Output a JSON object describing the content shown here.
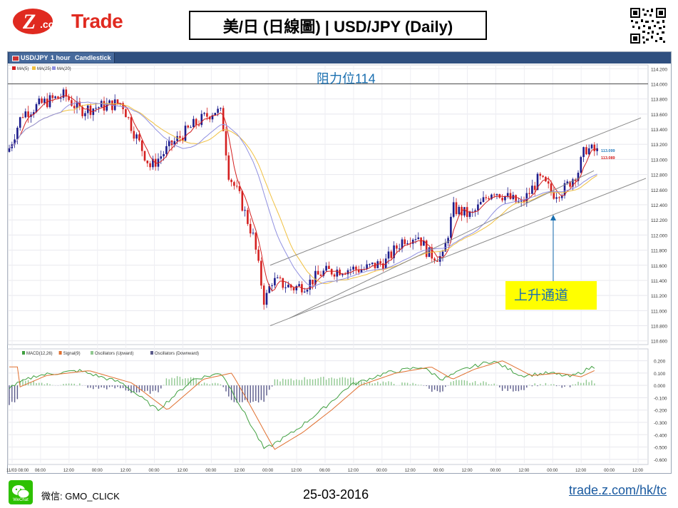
{
  "brand": {
    "logo_text": "Trade",
    "logo_z": "Z",
    "logo_com": ".com"
  },
  "title": "美/日 (日線圖) | USD/JPY  (Daily)",
  "chart_window": {
    "tabs": [
      "USD/JPY",
      "1 hour",
      "Candlestick"
    ],
    "legend_price": [
      "MA(5)",
      "MA(25)",
      "MA(20)"
    ],
    "legend_osc": [
      "MACD(12,26)",
      "Signal(9)",
      "Oscillators (Upward)",
      "Oscillators (Downward)"
    ]
  },
  "annotations": {
    "resistance": "阻力位114",
    "channel": "上升通道",
    "price_tag_1": "113.099",
    "price_tag_2": "113.089"
  },
  "chart_data": {
    "type": "candlestick",
    "y_ticks": [
      "114.200",
      "114.000",
      "113.800",
      "113.600",
      "113.400",
      "113.200",
      "113.000",
      "112.800",
      "112.600",
      "112.400",
      "112.200",
      "112.000",
      "111.800",
      "111.600",
      "111.400",
      "111.200",
      "111.000",
      "110.800",
      "110.600"
    ],
    "ylim": [
      110.55,
      114.25
    ],
    "osc_ticks": [
      "0.200",
      "0.100",
      "0.000",
      "-0.100",
      "-0.200",
      "-0.300",
      "-0.400",
      "-0.500",
      "-0.600"
    ],
    "osc_ylim": [
      -0.63,
      0.25
    ],
    "x_labels": [
      "11/03 08:00",
      "06:00",
      "12:00",
      "00:00",
      "12:00",
      "00:00",
      "12:00",
      "00:00",
      "12:00",
      "00:00",
      "12:00",
      "06:00",
      "12:00",
      "00:00",
      "12:00",
      "00:00",
      "12:00",
      "00:00",
      "12:00",
      "00:00",
      "12:00",
      "00:00",
      "12:00"
    ],
    "resistance_level": 114.0,
    "channel_upper": [
      [
        111.6,
        113.55
      ]
    ],
    "channel_lower": [
      [
        110.8,
        112.75
      ]
    ],
    "colors": {
      "up": "#1c1c8c",
      "down": "#d42020",
      "ma5": "#d42020",
      "ma25": "#f0c040",
      "ma20": "#9090e0",
      "macd": "#40a040",
      "signal": "#e07030",
      "hist_up": "#90c890",
      "hist_down": "#5a5a8a"
    }
  },
  "footer": {
    "wechat": "微信: GMO_CLICK",
    "wechat_icon_label": "WeChat",
    "date": "25-03-2016",
    "url": "trade.z.com/hk/tc"
  }
}
